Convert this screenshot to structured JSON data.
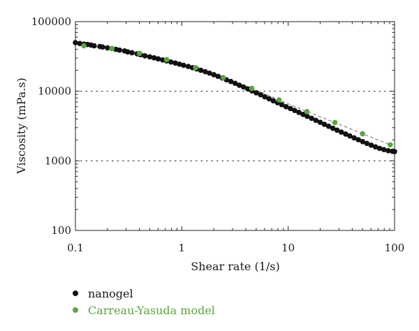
{
  "chart_data": {
    "type": "scatter",
    "xlabel": "Shear rate (1/s)",
    "ylabel": "Viscosity (mPa.s)",
    "xscale": "log",
    "yscale": "log",
    "xlim": [
      0.1,
      100
    ],
    "ylim": [
      100,
      100000
    ],
    "x_ticks": [
      "0.1",
      "1",
      "10",
      "100"
    ],
    "y_ticks": [
      "100",
      "1000",
      "10000",
      "100000"
    ],
    "grid": "dotted horizontal lines at 1000 and 10000",
    "legend_placement": "bottom-left, below plot",
    "series": [
      {
        "name": "nanogel",
        "color": "#111111",
        "x": [
          0.1,
          0.11,
          0.12,
          0.13,
          0.14,
          0.15,
          0.17,
          0.18,
          0.2,
          0.22,
          0.24,
          0.26,
          0.29,
          0.31,
          0.34,
          0.38,
          0.41,
          0.45,
          0.5,
          0.55,
          0.6,
          0.66,
          0.72,
          0.79,
          0.87,
          0.95,
          1.04,
          1.15,
          1.26,
          1.38,
          1.51,
          1.66,
          1.82,
          2.0,
          2.19,
          2.4,
          2.63,
          2.89,
          3.17,
          3.47,
          3.8,
          4.17,
          4.57,
          5.01,
          5.5,
          6.03,
          6.61,
          7.24,
          7.94,
          8.71,
          9.55,
          10.5,
          11.5,
          12.6,
          13.8,
          15.1,
          16.6,
          18.2,
          20.0,
          21.9,
          24.0,
          26.3,
          28.8,
          31.6,
          34.7,
          38.0,
          41.7,
          45.7,
          50.1,
          55.0,
          60.3,
          66.1,
          72.4,
          79.4,
          87.1,
          95.5,
          100
        ],
        "y": [
          50000,
          48500,
          47500,
          47000,
          46000,
          45000,
          44000,
          43200,
          42000,
          41000,
          40000,
          39000,
          38000,
          36800,
          35700,
          34500,
          33400,
          32300,
          31200,
          30200,
          29200,
          28200,
          27300,
          26300,
          25400,
          24500,
          23600,
          22700,
          21800,
          20900,
          20000,
          19100,
          18200,
          17300,
          16400,
          15500,
          14600,
          13800,
          13000,
          12200,
          11500,
          10800,
          10100,
          9500,
          8900,
          8300,
          7800,
          7300,
          6850,
          6400,
          6000,
          5650,
          5300,
          4970,
          4650,
          4360,
          4080,
          3820,
          3580,
          3350,
          3140,
          2940,
          2760,
          2590,
          2430,
          2280,
          2140,
          2010,
          1890,
          1780,
          1680,
          1590,
          1510,
          1450,
          1400,
          1370,
          1360
        ]
      },
      {
        "name": "Carreau-Yasuda model",
        "color": "#5aa73d",
        "x": [
          0.12,
          0.22,
          0.4,
          0.72,
          1.35,
          2.45,
          4.55,
          8.2,
          15.0,
          27.5,
          50.0,
          91.0
        ],
        "y": [
          45000,
          41000,
          35000,
          28500,
          21800,
          15700,
          11000,
          7500,
          5100,
          3550,
          2450,
          1700
        ]
      }
    ]
  }
}
